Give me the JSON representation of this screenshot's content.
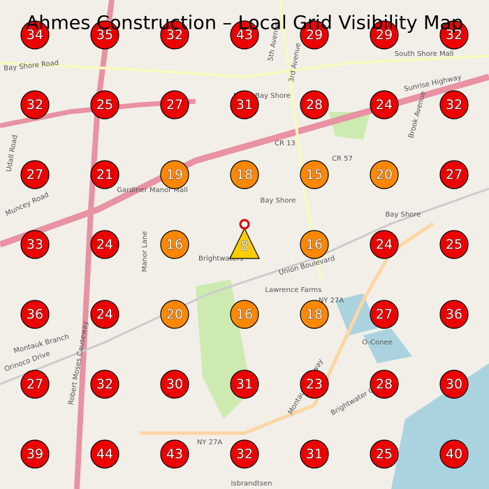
{
  "title": "Ahmes Construction – Local Grid Visibility Map",
  "grid": {
    "rows": [
      [
        34,
        35,
        32,
        43,
        29,
        29,
        32
      ],
      [
        32,
        25,
        27,
        31,
        28,
        24,
        32
      ],
      [
        27,
        21,
        19,
        18,
        15,
        20,
        27
      ],
      [
        33,
        24,
        16,
        8,
        16,
        24,
        25
      ],
      [
        36,
        24,
        20,
        16,
        18,
        27,
        36
      ],
      [
        27,
        32,
        30,
        31,
        23,
        28,
        30
      ],
      [
        39,
        44,
        43,
        32,
        31,
        25,
        40
      ]
    ],
    "colors": [
      [
        "#e00",
        "#e00",
        "#e00",
        "#e00",
        "#e00",
        "#e00",
        "#e00"
      ],
      [
        "#e00",
        "#e00",
        "#e00",
        "#e00",
        "#e00",
        "#e00",
        "#e00"
      ],
      [
        "#e00",
        "#e00",
        "#f80",
        "#f80",
        "#f80",
        "#f80",
        "#e00"
      ],
      [
        "#e00",
        "#e00",
        "#f80",
        "#fc0",
        "#f80",
        "#e00",
        "#e00"
      ],
      [
        "#e00",
        "#e00",
        "#f80",
        "#f80",
        "#f80",
        "#e00",
        "#e00"
      ],
      [
        "#e00",
        "#e00",
        "#e00",
        "#e00",
        "#e00",
        "#e00",
        "#e00"
      ],
      [
        "#e00",
        "#e00",
        "#e00",
        "#e00",
        "#e00",
        "#e00",
        "#e00"
      ]
    ]
  },
  "map_labels": [
    "Bay Shore Road",
    "Sunrise Highway",
    "Muncey Road",
    "Montauk Branch",
    "Orinoco Drive",
    "Robert Moses Causeway",
    "Bay Shore",
    "Bay Shore",
    "Brightwaters",
    "Union Boulevard",
    "Lawrence Farms",
    "NY 27A",
    "NY 27A",
    "CR 13",
    "CR 57",
    "5th Avenue",
    "3rd Avenue",
    "North Bay Shore",
    "Gardiner Manor Mall",
    "South Shore Mall",
    "Manor Lane",
    "O-Conee",
    "Brightwater Canal",
    "Isbrandtsen",
    "Montauk Highway",
    "Brook Avenue",
    "Udall Road"
  ]
}
